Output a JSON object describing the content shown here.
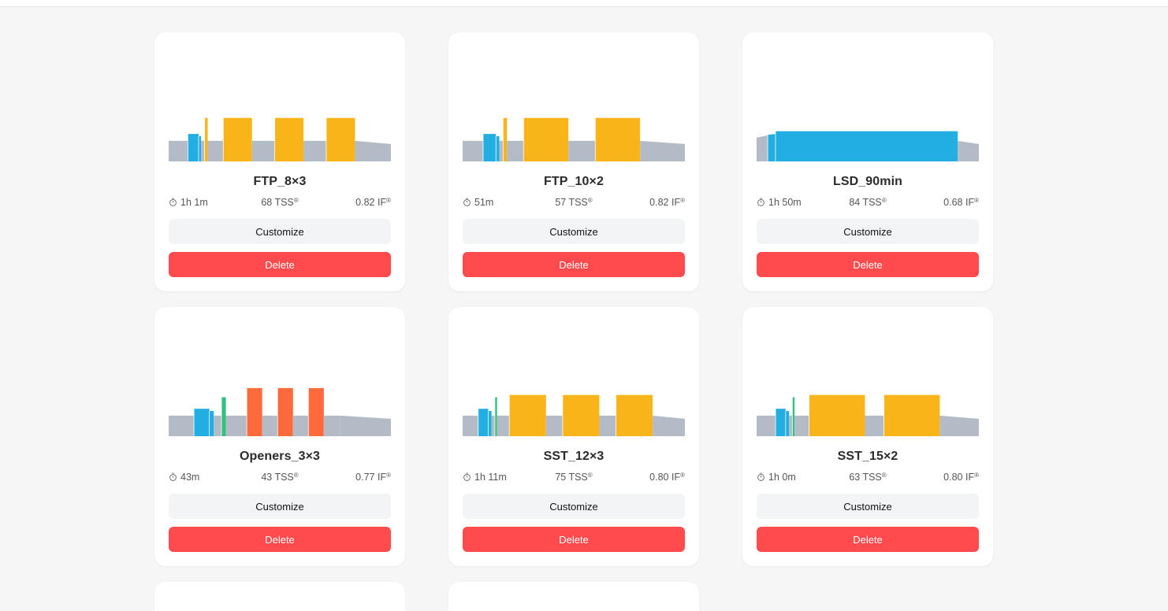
{
  "colors": {
    "recovery": "#b3bcc6",
    "endurance": "#22aee0",
    "tempo": "#2ec27e",
    "threshold": "#f9b419",
    "vo2": "#ff6a3d",
    "delete": "#ff4b4e"
  },
  "labels": {
    "customize": "Customize",
    "delete": "Delete",
    "clock_icon": "stopwatch-icon"
  },
  "workouts": [
    {
      "name": "FTP_8×3",
      "duration": "1h 1m",
      "tss": "68 TSS",
      "if": "0.82 IF",
      "tss_mark": "®",
      "if_mark": "®",
      "segments": [
        {
          "d": 8,
          "p": 0.45,
          "z": "recovery"
        },
        {
          "d": 4.5,
          "p": 0.6,
          "z": "endurance"
        },
        {
          "d": 1,
          "p": 0.55,
          "z": "endurance"
        },
        {
          "d": 1.5,
          "p": 0.45,
          "z": "recovery"
        },
        {
          "d": 1.3,
          "p": 0.95,
          "z": "threshold"
        },
        {
          "d": 6.5,
          "p": 0.45,
          "z": "recovery"
        },
        {
          "d": 12,
          "p": 0.95,
          "z": "threshold"
        },
        {
          "d": 9.5,
          "p": 0.45,
          "z": "recovery"
        },
        {
          "d": 12,
          "p": 0.95,
          "z": "threshold"
        },
        {
          "d": 9.5,
          "p": 0.45,
          "z": "recovery"
        },
        {
          "d": 12,
          "p": 0.95,
          "z": "threshold"
        },
        {
          "d": 15,
          "p": 0.45,
          "p2": 0.38,
          "z": "recovery"
        }
      ]
    },
    {
      "name": "FTP_10×2",
      "duration": "51m",
      "tss": "57 TSS",
      "if": "0.82 IF",
      "tss_mark": "®",
      "if_mark": "®",
      "segments": [
        {
          "d": 8,
          "p": 0.45,
          "z": "recovery"
        },
        {
          "d": 5,
          "p": 0.6,
          "z": "endurance"
        },
        {
          "d": 1.3,
          "p": 0.55,
          "z": "endurance"
        },
        {
          "d": 1.5,
          "p": 0.45,
          "z": "recovery"
        },
        {
          "d": 1.5,
          "p": 0.95,
          "z": "threshold"
        },
        {
          "d": 6.5,
          "p": 0.45,
          "z": "recovery"
        },
        {
          "d": 17.5,
          "p": 0.95,
          "z": "threshold"
        },
        {
          "d": 10.5,
          "p": 0.45,
          "z": "recovery"
        },
        {
          "d": 17.5,
          "p": 0.95,
          "z": "threshold"
        },
        {
          "d": 17.5,
          "p": 0.45,
          "p2": 0.38,
          "z": "recovery"
        }
      ]
    },
    {
      "name": "LSD_90min",
      "duration": "1h 50m",
      "tss": "84 TSS",
      "if": "0.68 IF",
      "tss_mark": "®",
      "if_mark": "®",
      "segments": [
        {
          "d": 5,
          "p": 0.52,
          "p2": 0.57,
          "z": "recovery"
        },
        {
          "d": 3.5,
          "p": 0.58,
          "p2": 0.6,
          "z": "endurance"
        },
        {
          "d": 82,
          "p": 0.66,
          "z": "endurance"
        },
        {
          "d": 9.5,
          "p": 0.45,
          "p2": 0.38,
          "z": "recovery"
        }
      ]
    },
    {
      "name": "Openers_3×3",
      "duration": "43m",
      "tss": "43 TSS",
      "if": "0.77 IF",
      "tss_mark": "®",
      "if_mark": "®",
      "segments": [
        {
          "d": 11.5,
          "p": 0.45,
          "z": "recovery"
        },
        {
          "d": 7,
          "p": 0.6,
          "z": "endurance"
        },
        {
          "d": 2,
          "p": 0.55,
          "z": "endurance"
        },
        {
          "d": 3.5,
          "p": 0.45,
          "z": "recovery"
        },
        {
          "d": 2,
          "p": 0.85,
          "z": "tempo"
        },
        {
          "d": 9.5,
          "p": 0.45,
          "z": "recovery"
        },
        {
          "d": 7,
          "p": 1.05,
          "z": "vo2"
        },
        {
          "d": 7,
          "p": 0.45,
          "z": "recovery"
        },
        {
          "d": 7,
          "p": 1.05,
          "z": "vo2"
        },
        {
          "d": 7,
          "p": 0.45,
          "z": "recovery"
        },
        {
          "d": 7,
          "p": 1.05,
          "z": "vo2"
        },
        {
          "d": 7.5,
          "p": 0.45,
          "z": "recovery"
        },
        {
          "d": 23,
          "p": 0.45,
          "p2": 0.38,
          "z": "recovery"
        }
      ]
    },
    {
      "name": "SST_12×3",
      "duration": "1h 11m",
      "tss": "75 TSS",
      "if": "0.80 IF",
      "tss_mark": "®",
      "if_mark": "®",
      "segments": [
        {
          "d": 7,
          "p": 0.45,
          "z": "recovery"
        },
        {
          "d": 4.5,
          "p": 0.6,
          "z": "endurance"
        },
        {
          "d": 1.5,
          "p": 0.55,
          "z": "endurance"
        },
        {
          "d": 1.5,
          "p": 0.45,
          "z": "recovery"
        },
        {
          "d": 1,
          "p": 0.85,
          "z": "tempo"
        },
        {
          "d": 5.5,
          "p": 0.45,
          "z": "recovery"
        },
        {
          "d": 16.5,
          "p": 0.9,
          "z": "threshold"
        },
        {
          "d": 7.5,
          "p": 0.45,
          "z": "recovery"
        },
        {
          "d": 16.5,
          "p": 0.9,
          "z": "threshold"
        },
        {
          "d": 7.5,
          "p": 0.45,
          "z": "recovery"
        },
        {
          "d": 16.5,
          "p": 0.9,
          "z": "threshold"
        },
        {
          "d": 14.5,
          "p": 0.45,
          "p2": 0.38,
          "z": "recovery"
        }
      ]
    },
    {
      "name": "SST_15×2",
      "duration": "1h 0m",
      "tss": "63 TSS",
      "if": "0.80 IF",
      "tss_mark": "®",
      "if_mark": "®",
      "segments": [
        {
          "d": 8.5,
          "p": 0.45,
          "z": "recovery"
        },
        {
          "d": 4.5,
          "p": 0.6,
          "z": "endurance"
        },
        {
          "d": 1.5,
          "p": 0.55,
          "z": "endurance"
        },
        {
          "d": 1.5,
          "p": 0.45,
          "z": "recovery"
        },
        {
          "d": 1,
          "p": 0.85,
          "z": "tempo"
        },
        {
          "d": 6.5,
          "p": 0.45,
          "z": "recovery"
        },
        {
          "d": 25,
          "p": 0.9,
          "z": "threshold"
        },
        {
          "d": 8.5,
          "p": 0.45,
          "z": "recovery"
        },
        {
          "d": 25,
          "p": 0.9,
          "z": "threshold"
        },
        {
          "d": 17.5,
          "p": 0.45,
          "p2": 0.38,
          "z": "recovery"
        }
      ]
    }
  ]
}
